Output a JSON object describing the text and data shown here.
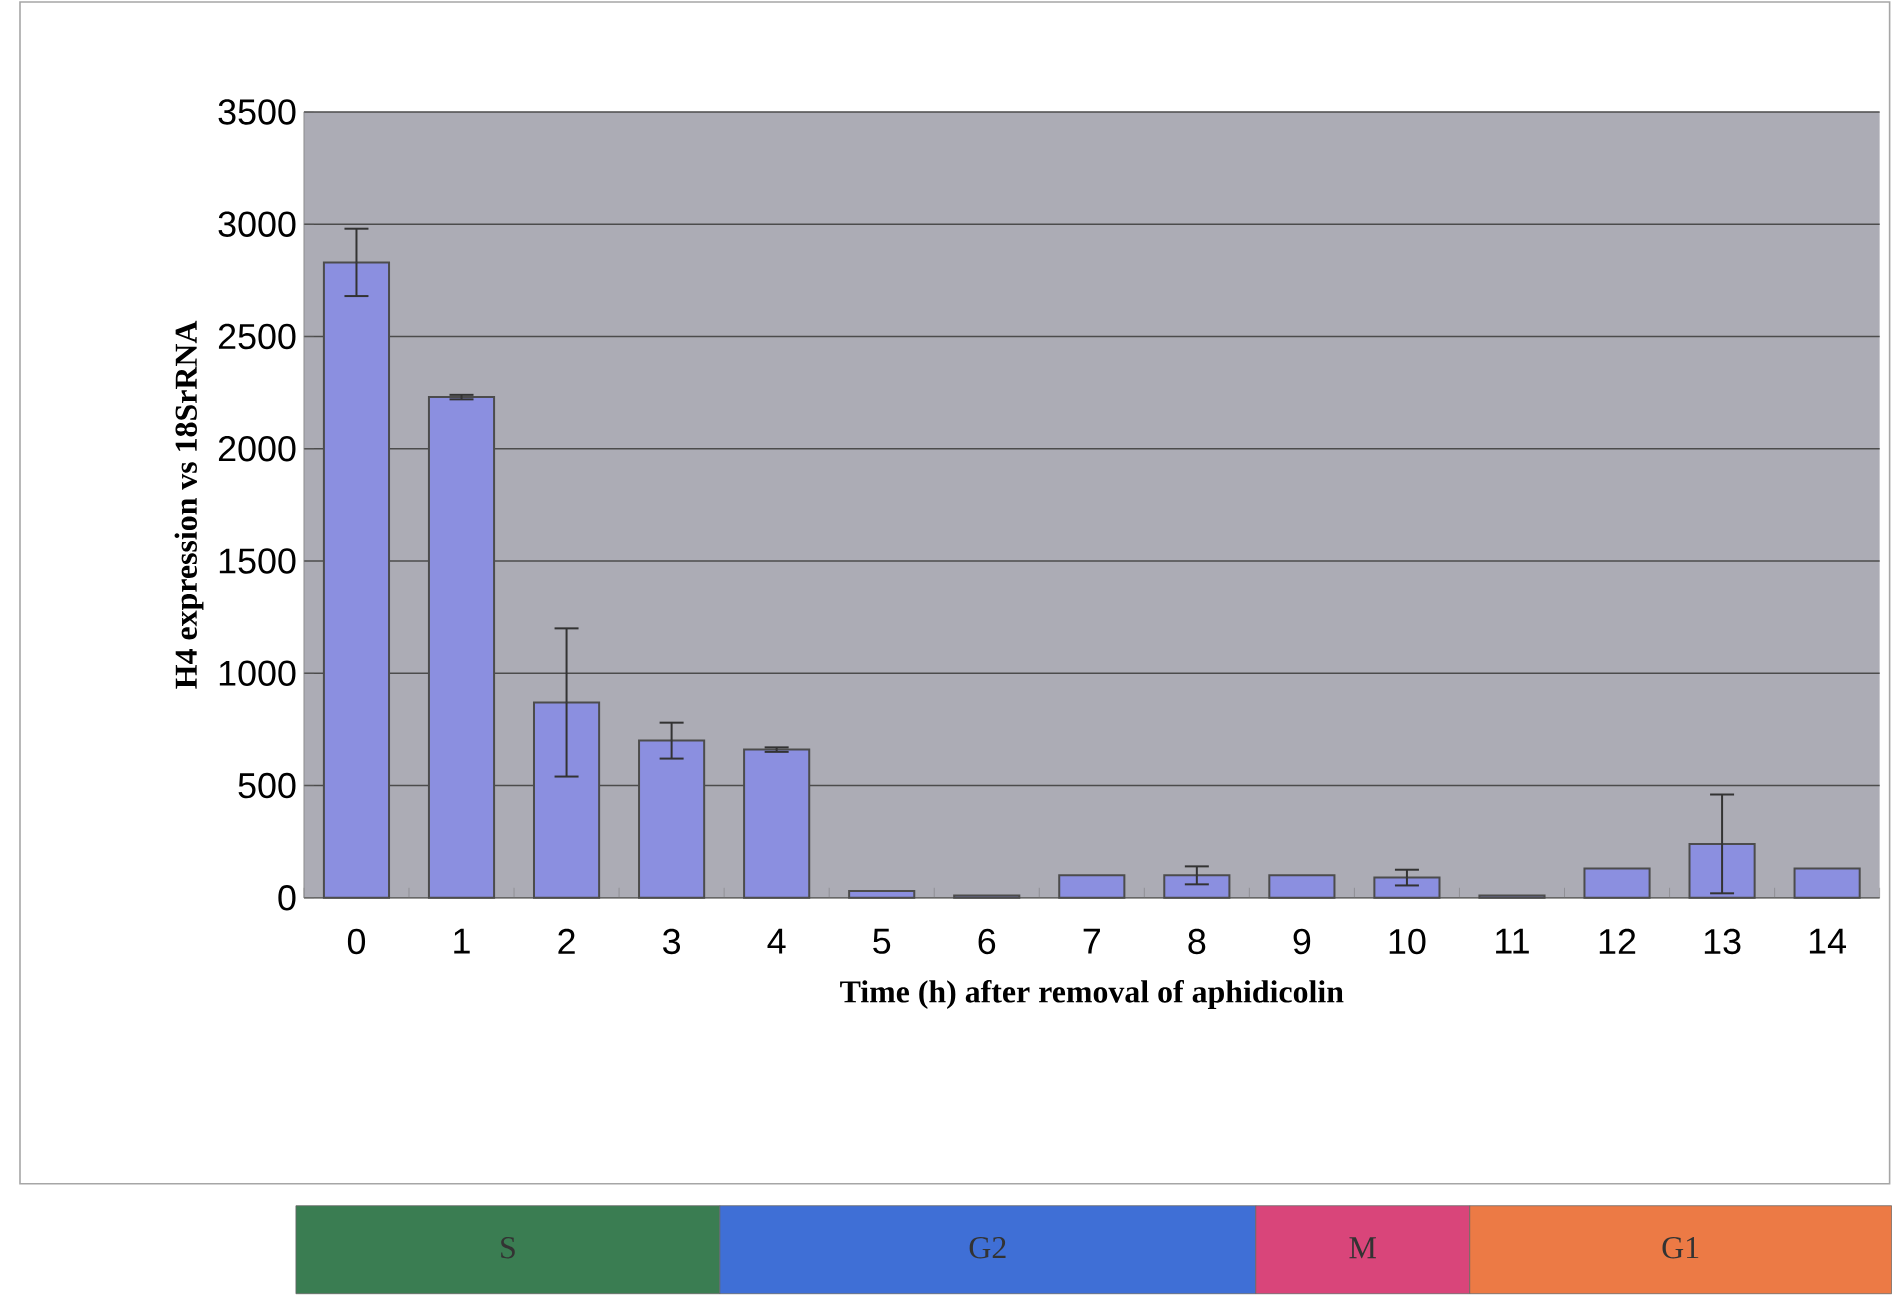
{
  "chart_data": {
    "type": "bar",
    "xlabel": "Time (h) after removal of aphidicolin",
    "ylabel": "H4 expression vs 18SrRNA",
    "categories": [
      "0",
      "1",
      "2",
      "3",
      "4",
      "5",
      "6",
      "7",
      "8",
      "9",
      "10",
      "11",
      "12",
      "13",
      "14"
    ],
    "values": [
      2830,
      2230,
      870,
      700,
      660,
      30,
      10,
      100,
      100,
      100,
      90,
      10,
      130,
      240,
      130
    ],
    "errors": [
      150,
      10,
      330,
      80,
      10,
      null,
      null,
      null,
      40,
      null,
      35,
      null,
      null,
      220,
      null
    ],
    "color": "#8b8fe0",
    "ylim": [
      0,
      3500
    ],
    "yticks": [
      0,
      500,
      1000,
      1500,
      2000,
      2500,
      3000,
      3500
    ],
    "grid": "y",
    "annotations": [
      "S",
      "G2",
      "M",
      "G1"
    ]
  }
}
